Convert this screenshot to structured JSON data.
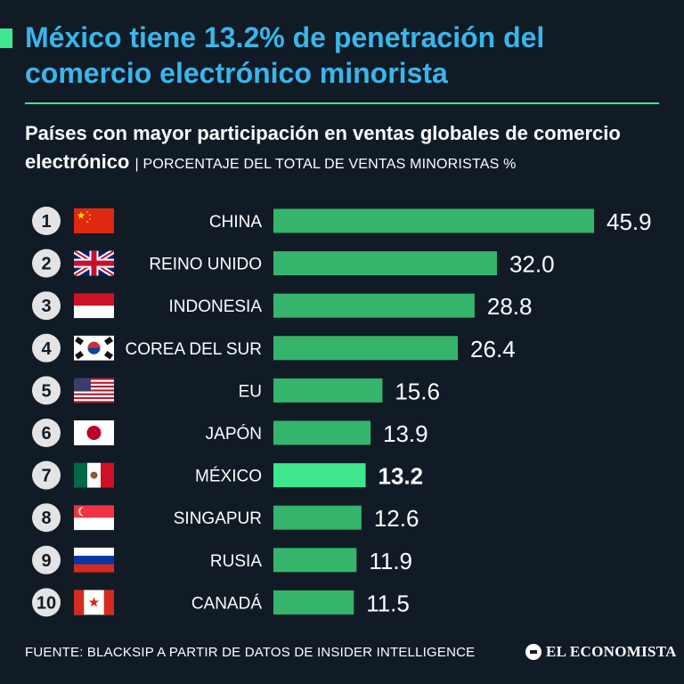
{
  "header": {
    "title": "México tiene 13.2% de penetración del comercio electrónico minorista",
    "subtitle": "Países con mayor participación en ventas globales de comercio electrónico",
    "unit_label": "| PORCENTAJE DEL TOTAL DE VENTAS MINORISTAS %"
  },
  "colors": {
    "background": "#111b26",
    "title": "#39b6ea",
    "accent": "#3ee68e",
    "bar": "#35b56b",
    "bar_highlight": "#3ee68e"
  },
  "chart_data": {
    "type": "bar",
    "orientation": "horizontal",
    "title": "Países con mayor participación en ventas globales de comercio electrónico",
    "ylabel": "PORCENTAJE DEL TOTAL DE VENTAS MINORISTAS %",
    "ranks": [
      "1",
      "2",
      "3",
      "4",
      "5",
      "6",
      "7",
      "8",
      "9",
      "10"
    ],
    "categories": [
      "CHINA",
      "REINO UNIDO",
      "INDONESIA",
      "COREA DEL SUR",
      "EU",
      "JAPÓN",
      "MÉXICO",
      "SINGAPUR",
      "RUSIA",
      "CANADÁ"
    ],
    "values": [
      45.9,
      32.0,
      28.8,
      26.4,
      15.6,
      13.9,
      13.2,
      12.6,
      11.9,
      11.5
    ],
    "value_labels": [
      "45.9",
      "32.0",
      "28.8",
      "26.4",
      "15.6",
      "13.9",
      "13.2",
      "12.6",
      "11.9",
      "11.5"
    ],
    "flags": [
      "china-flag-icon",
      "uk-flag-icon",
      "indonesia-flag-icon",
      "south-korea-flag-icon",
      "usa-flag-icon",
      "japan-flag-icon",
      "mexico-flag-icon",
      "singapore-flag-icon",
      "russia-flag-icon",
      "canada-flag-icon"
    ],
    "highlight": "MÉXICO",
    "xlim": [
      0,
      45.9
    ],
    "grid": false,
    "legend": "none"
  },
  "footer": {
    "source": "FUENTE: BLACKSIP A PARTIR DE DATOS DE INSIDER INTELLIGENCE",
    "brand": "EL ECONOMISTA"
  }
}
